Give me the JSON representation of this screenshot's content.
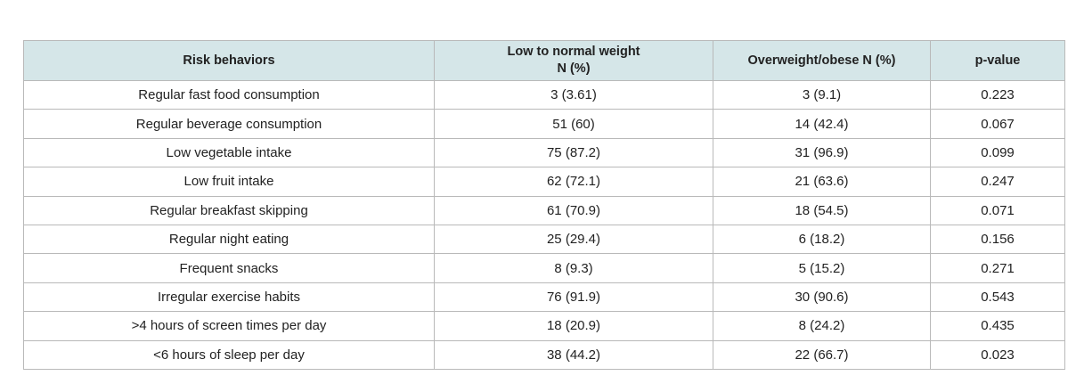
{
  "table": {
    "headers": {
      "risk": "Risk behaviors",
      "low_line1": "Low to normal weight",
      "low_line2": "N (%)",
      "over": "Overweight/obese N (%)",
      "p": "p-value"
    },
    "rows": [
      {
        "behavior": "Regular fast food consumption",
        "low": "3 (3.61)",
        "over": "3 (9.1)",
        "p": "0.223"
      },
      {
        "behavior": "Regular beverage consumption",
        "low": "51 (60)",
        "over": "14 (42.4)",
        "p": "0.067"
      },
      {
        "behavior": "Low vegetable intake",
        "low": "75 (87.2)",
        "over": "31 (96.9)",
        "p": "0.099"
      },
      {
        "behavior": "Low fruit intake",
        "low": "62 (72.1)",
        "over": "21 (63.6)",
        "p": "0.247"
      },
      {
        "behavior": "Regular breakfast skipping",
        "low": "61 (70.9)",
        "over": "18 (54.5)",
        "p": "0.071"
      },
      {
        "behavior": "Regular night eating",
        "low": "25 (29.4)",
        "over": "6 (18.2)",
        "p": "0.156"
      },
      {
        "behavior": "Frequent snacks",
        "low": "8 (9.3)",
        "over": "5 (15.2)",
        "p": "0.271"
      },
      {
        "behavior": "Irregular exercise habits",
        "low": "76 (91.9)",
        "over": "30 (90.6)",
        "p": "0.543"
      },
      {
        "behavior": ">4 hours of screen times per day",
        "low": "18 (20.9)",
        "over": "8 (24.2)",
        "p": "0.435"
      },
      {
        "behavior": "<6 hours of sleep per day",
        "low": "38 (44.2)",
        "over": "22 (66.7)",
        "p": "0.023"
      }
    ]
  }
}
